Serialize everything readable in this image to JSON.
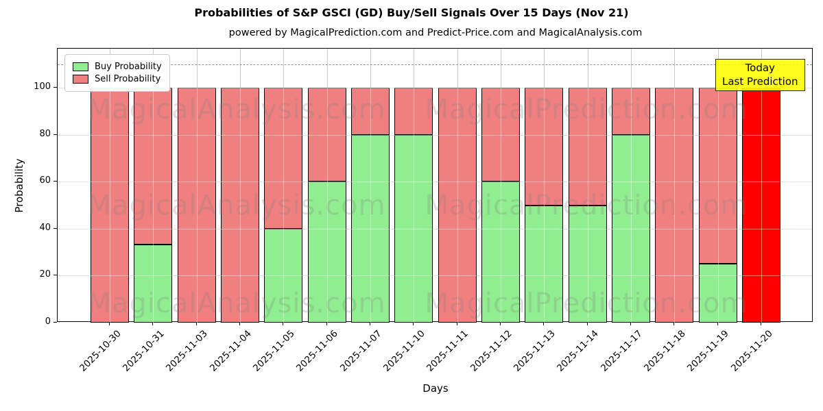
{
  "title": "Probabilities of S&P GSCI (GD) Buy/Sell Signals Over 15 Days (Nov 21)",
  "subtitle": "powered by MagicalPrediction.com and Predict-Price.com and MagicalAnalysis.com",
  "legend": {
    "buy_label": "Buy Probability",
    "sell_label": "Sell Probability"
  },
  "annotation": {
    "line1": "Today",
    "line2": "Last Prediction"
  },
  "watermarks": {
    "left": "MagicalAnalysis.com",
    "right": "MagicalPrediction.com"
  },
  "colors": {
    "buy": "#90EE90",
    "sell": "#F08080",
    "today_sell": "#FF0000",
    "annotation_bg": "#FFFF00",
    "grid": "#c9c9c9",
    "dashed_line": "#8f8f8f"
  },
  "chart_data": {
    "type": "bar",
    "stacked": true,
    "title": "Probabilities of S&P GSCI (GD) Buy/Sell Signals Over 15 Days (Nov 21)",
    "xlabel": "Days",
    "ylabel": "Probability",
    "ylim": [
      0,
      116.7
    ],
    "yticks": [
      0,
      20,
      40,
      60,
      80,
      100
    ],
    "dashed_line_y": 110,
    "grid": true,
    "legend_position": "upper left",
    "categories": [
      "2025-10-30",
      "2025-10-31",
      "2025-11-03",
      "2025-11-04",
      "2025-11-05",
      "2025-11-06",
      "2025-11-07",
      "2025-11-10",
      "2025-11-11",
      "2025-11-12",
      "2025-11-13",
      "2025-11-14",
      "2025-11-17",
      "2025-11-18",
      "2025-11-19",
      "2025-11-20"
    ],
    "series": [
      {
        "name": "Buy Probability",
        "color": "#90EE90",
        "values": [
          0,
          33.3,
          0,
          0,
          40,
          60,
          80,
          80,
          0,
          60,
          50,
          50,
          80,
          0,
          25,
          0
        ]
      },
      {
        "name": "Sell Probability",
        "color": "#F08080",
        "values": [
          100,
          66.7,
          100,
          100,
          60,
          40,
          20,
          20,
          100,
          40,
          50,
          50,
          20,
          100,
          75,
          100
        ]
      }
    ],
    "today_index": 15
  }
}
